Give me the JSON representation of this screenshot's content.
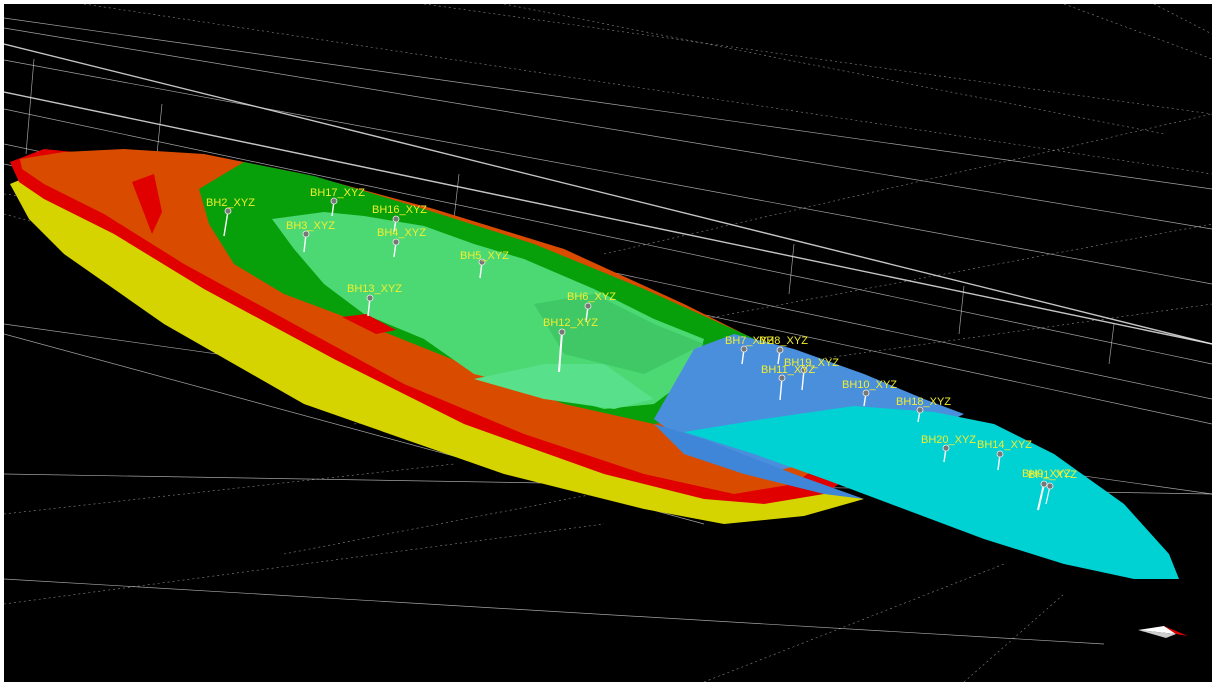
{
  "viewer": {
    "background": "#000000",
    "label_color": "#f2ee2e"
  },
  "layers": [
    {
      "name": "layer-bottom",
      "color": "#d6d400"
    },
    {
      "name": "layer-2",
      "color": "#e00000"
    },
    {
      "name": "layer-3",
      "color": "#d94c00"
    },
    {
      "name": "layer-4",
      "color": "#07a00a"
    },
    {
      "name": "layer-5",
      "color": "#4cd974"
    },
    {
      "name": "layer-6",
      "color": "#4a8fdc"
    },
    {
      "name": "layer-top",
      "color": "#00d2d4"
    }
  ],
  "boreholes": [
    {
      "id": "bh2",
      "label": "BH2_XYZ"
    },
    {
      "id": "bh17",
      "label": "BH17_XYZ"
    },
    {
      "id": "bh16",
      "label": "BH16_XYZ"
    },
    {
      "id": "bh3",
      "label": "BH3_XYZ"
    },
    {
      "id": "bh4",
      "label": "BH4_XYZ"
    },
    {
      "id": "bh5",
      "label": "BH5_XYZ"
    },
    {
      "id": "bh13",
      "label": "BH13_XYZ"
    },
    {
      "id": "bh6",
      "label": "BH6_XYZ"
    },
    {
      "id": "bh12",
      "label": "BH12_XYZ"
    },
    {
      "id": "bh7",
      "label": "BH7_XYZ"
    },
    {
      "id": "bh8",
      "label": "BH8_XYZ"
    },
    {
      "id": "bh19",
      "label": "BH19_XYZ"
    },
    {
      "id": "bh11",
      "label": "BH11_XYZ"
    },
    {
      "id": "bh10",
      "label": "BH10_XYZ"
    },
    {
      "id": "bh18",
      "label": "BH18_XYZ"
    },
    {
      "id": "bh20",
      "label": "BH20_XYZ"
    },
    {
      "id": "bh14",
      "label": "BH14_XYZ"
    },
    {
      "id": "bh9",
      "label": "BH9_XYZ"
    },
    {
      "id": "bh1",
      "label": "BH1_XYZ"
    }
  ]
}
